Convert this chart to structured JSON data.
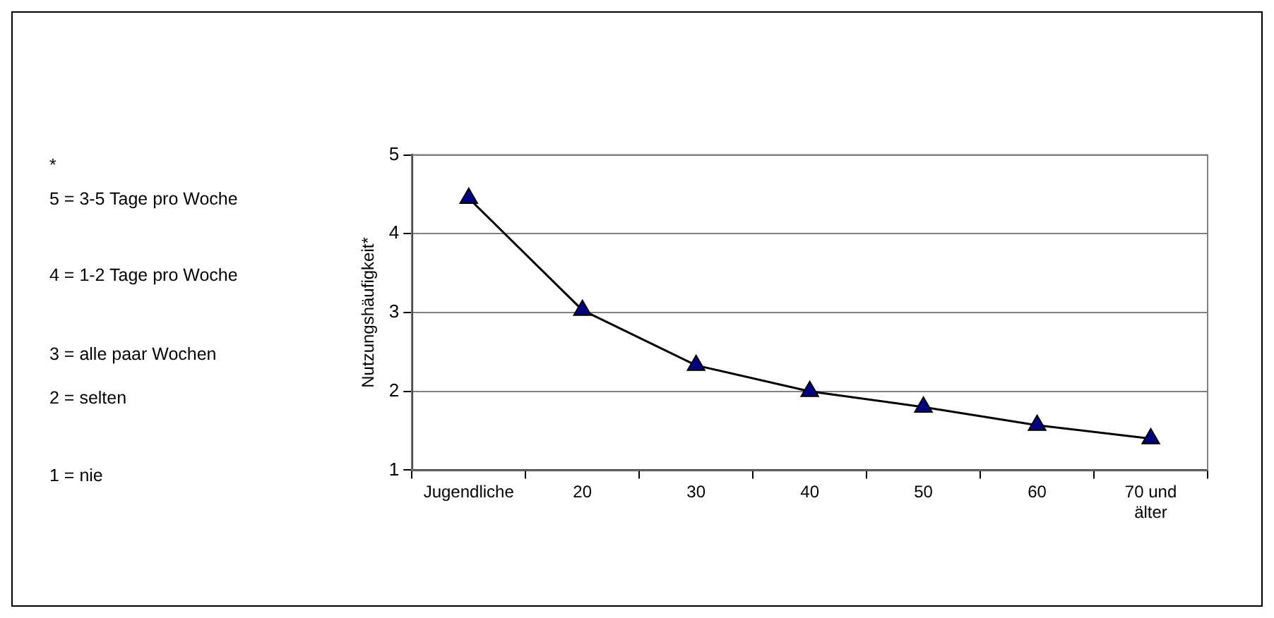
{
  "chart_data": {
    "type": "line",
    "ylabel": "Nutzungshäufigkeit*",
    "categories": [
      "Jugendliche",
      "20",
      "30",
      "40",
      "50",
      "60",
      "70 und\nälter"
    ],
    "series": [
      {
        "color": "#000080",
        "values": [
          4.45,
          3.03,
          2.33,
          2.0,
          1.8,
          1.57,
          1.4
        ]
      }
    ],
    "ylim": [
      1,
      5
    ],
    "yticks": [
      1,
      2,
      3,
      4,
      5
    ],
    "grid": "y",
    "legend": false,
    "marker": "triangle",
    "line_style": "solid",
    "annotations": [
      "*",
      "5 = 3-5 Tage pro Woche",
      "4 = 1-2 Tage pro Woche",
      "3 = alle paar Wochen",
      "2 = selten",
      "1 = nie"
    ]
  }
}
